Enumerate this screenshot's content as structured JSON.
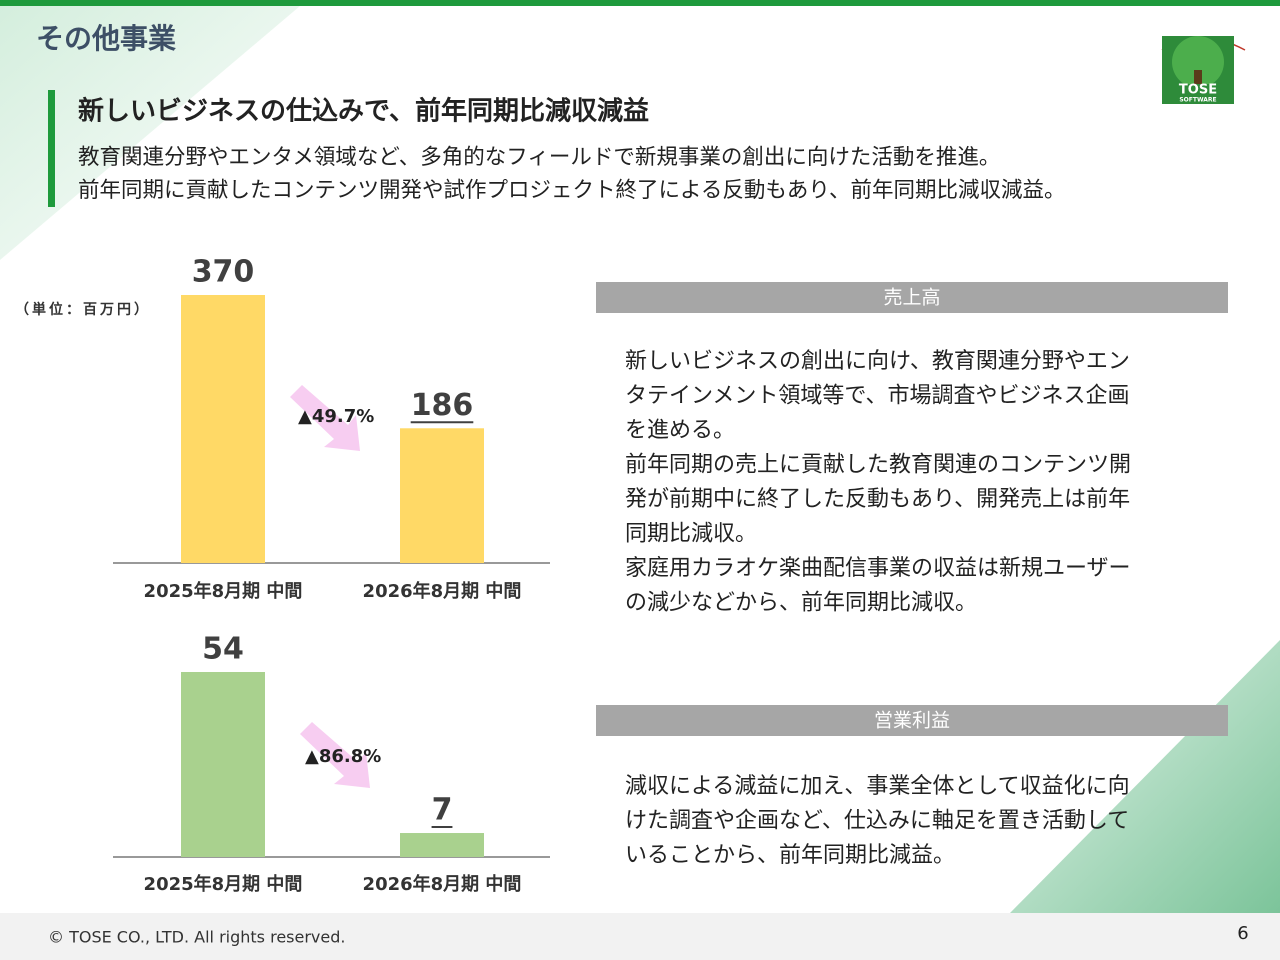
{
  "header": {
    "title": "その他事業"
  },
  "logo": {
    "text": "TOSE",
    "subtext": "SOFTWARE"
  },
  "headline": {
    "title": "新しいビジネスの仕込みで、前年同期比減収減益",
    "lines": [
      "教育関連分野やエンタメ領域など、多角的なフィールドで新規事業の創出に向けた活動を推進。",
      "前年同期に貢献したコンテンツ開発や試作プロジェクト終了による反動もあり、前年同期比減収減益。"
    ]
  },
  "unit_label": "（単位：百万円）",
  "chart_data": [
    {
      "type": "bar",
      "categories": [
        "2025年8月期 中間",
        "2026年8月期 中間"
      ],
      "values": [
        370,
        186
      ],
      "color": "#ffd966",
      "annotation": "▲49.7%"
    },
    {
      "type": "bar",
      "categories": [
        "2025年8月期 中間",
        "2026年8月期 中間"
      ],
      "values": [
        54,
        7
      ],
      "color": "#a9d18e",
      "annotation": "▲86.8%"
    }
  ],
  "sections": [
    {
      "heading": "売上高",
      "lines": [
        "新しいビジネスの創出に向け、教育関連分野やエン",
        "タテインメント領域等で、市場調査やビジネス企画",
        "を進める。",
        "前年同期の売上に貢献した教育関連のコンテンツ開",
        "発が前期中に終了した反動もあり、開発売上は前年",
        "同期比減収。",
        "家庭用カラオケ楽曲配信事業の収益は新規ユーザー",
        "の減少などから、前年同期比減収。"
      ]
    },
    {
      "heading": "営業利益",
      "lines": [
        "減収による減益に加え、事業全体として収益化に向",
        "けた調査や企画など、仕込みに軸足を置き活動して",
        "いることから、前年同期比減益。"
      ]
    }
  ],
  "footer": {
    "copyright": "© TOSE CO., LTD. All rights reserved.",
    "page": "6"
  }
}
